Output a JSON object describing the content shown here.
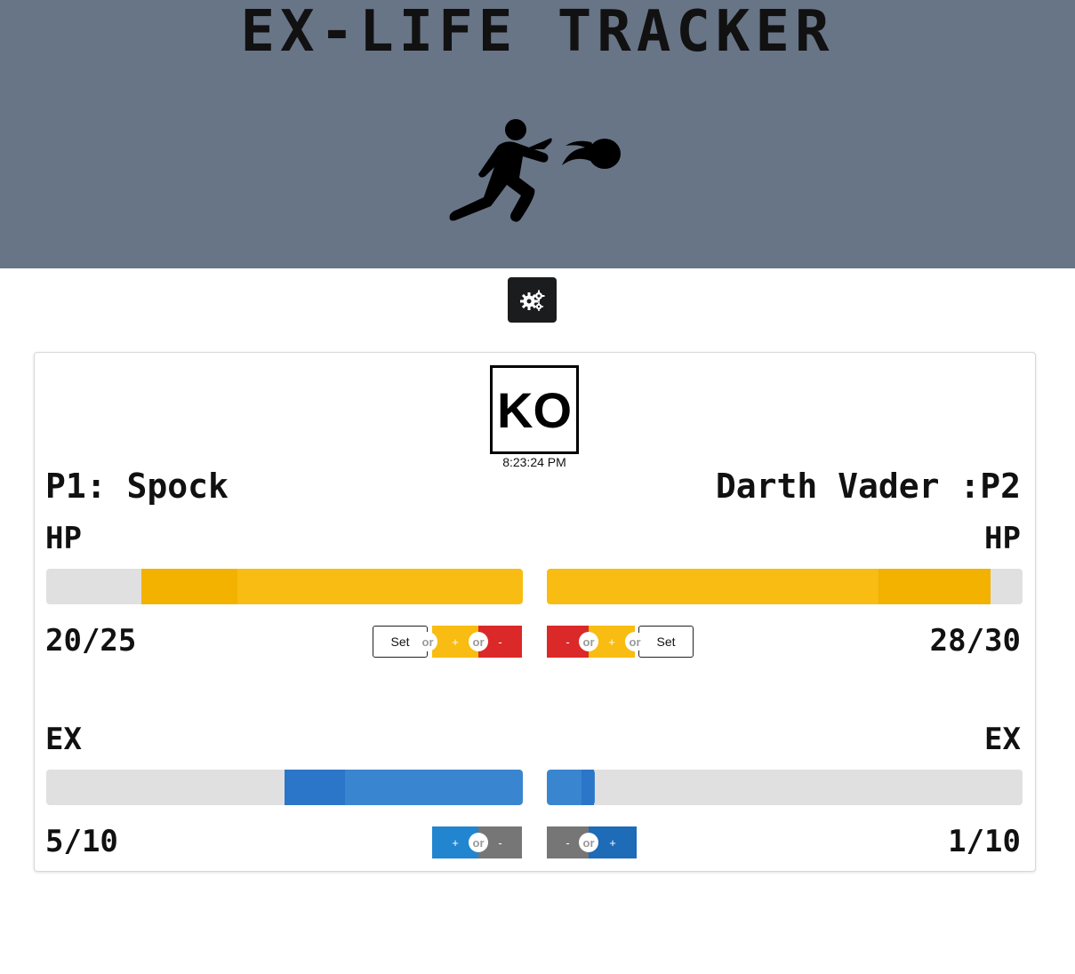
{
  "header": {
    "title": "EX-LIFE TRACKER",
    "hero_icon": "fireball-thrower-icon",
    "bg_color": "#687587"
  },
  "settings": {
    "icon": "cogs-icon"
  },
  "match": {
    "ko_label": "KO",
    "time": "8:23:24 PM"
  },
  "p1": {
    "name": "P1: Spock",
    "hp": {
      "label": "HP",
      "current": 20,
      "max": 25,
      "display": "20/25"
    },
    "ex": {
      "label": "EX",
      "current": 5,
      "max": 10,
      "display": "5/10"
    },
    "hp_buttons": {
      "set": "Set",
      "or": "or",
      "plus": "+",
      "minus": "-"
    },
    "ex_buttons": {
      "plus": "+",
      "or": "or",
      "minus": "-"
    }
  },
  "p2": {
    "name": "Darth Vader :P2",
    "hp": {
      "label": "HP",
      "current": 28,
      "max": 30,
      "display": "28/30"
    },
    "ex": {
      "label": "EX",
      "current": 1,
      "max": 10,
      "display": "1/10"
    },
    "hp_buttons": {
      "minus": "-",
      "or": "or",
      "plus": "+",
      "set": "Set"
    },
    "ex_buttons": {
      "minus": "-",
      "or": "or",
      "plus": "+"
    }
  },
  "colors": {
    "hp": "#f8bc12",
    "ex": "#3a85d0",
    "minus": "#db2828",
    "ex_minus": "#767676"
  }
}
